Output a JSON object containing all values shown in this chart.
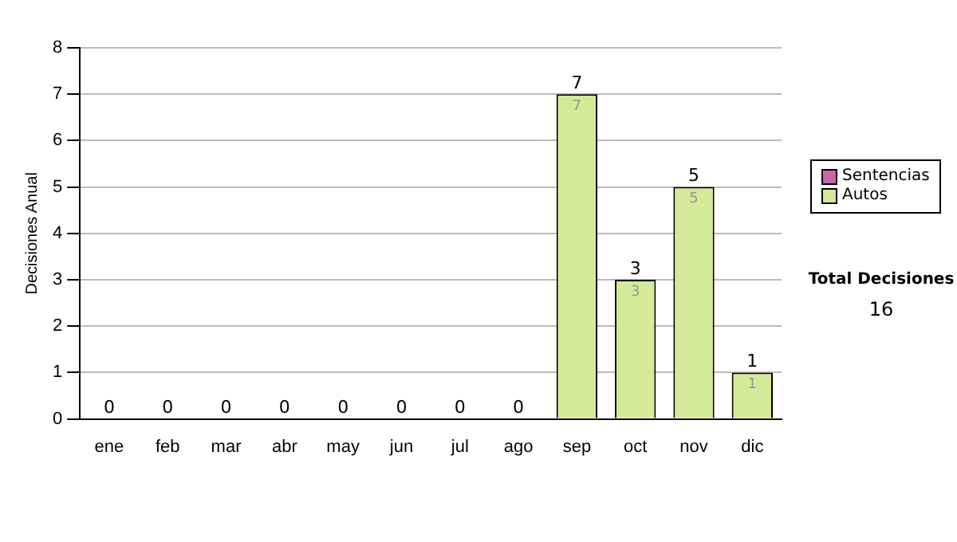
{
  "chart_data": {
    "type": "bar",
    "stacked": true,
    "ylabel": "Decisiones Anual",
    "categories": [
      "ene",
      "feb",
      "mar",
      "abr",
      "may",
      "jun",
      "jul",
      "ago",
      "sep",
      "oct",
      "nov",
      "dic"
    ],
    "series": [
      {
        "name": "Sentencias",
        "color": "#cc66aa",
        "values": [
          0,
          0,
          0,
          0,
          0,
          0,
          0,
          0,
          0,
          0,
          0,
          0
        ]
      },
      {
        "name": "Autos",
        "color": "#d4ea98",
        "values": [
          0,
          0,
          0,
          0,
          0,
          0,
          0,
          0,
          7,
          3,
          5,
          1
        ],
        "value_labels": [
          null,
          null,
          null,
          null,
          null,
          null,
          null,
          null,
          "7",
          "3",
          "5",
          "1"
        ]
      }
    ],
    "totals": [
      "0",
      "0",
      "0",
      "0",
      "0",
      "0",
      "0",
      "0",
      "7",
      "3",
      "5",
      "1"
    ],
    "ylim": [
      0,
      8
    ],
    "yticks": [
      0,
      1,
      2,
      3,
      4,
      5,
      6,
      7,
      8
    ],
    "grid": "y",
    "legend": "right",
    "annotations": [
      "Total Decisiones",
      "16"
    ]
  }
}
